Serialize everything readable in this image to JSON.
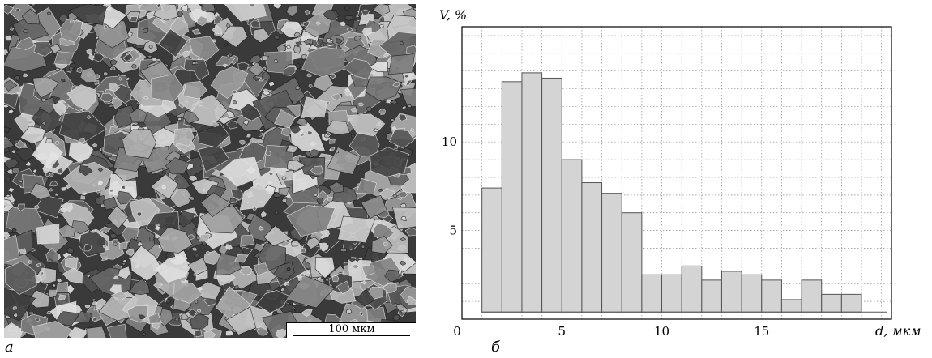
{
  "panel_a": {
    "label": "а",
    "scale_bar": "100 мкм"
  },
  "panel_b": {
    "label": "б"
  },
  "chart_data": {
    "type": "bar",
    "title": "",
    "ylabel": "V, %",
    "xlabel": "d, мкм",
    "x_bin_edges": [
      1,
      2,
      3,
      4,
      5,
      6,
      7,
      8,
      9,
      10,
      11,
      12,
      13,
      14,
      15,
      16,
      17,
      18,
      19,
      20
    ],
    "values": [
      7.4,
      13.4,
      13.9,
      13.6,
      9.0,
      7.7,
      7.1,
      6.0,
      2.5,
      2.5,
      3.0,
      2.2,
      2.7,
      2.5,
      2.2,
      1.1,
      2.2,
      1.4,
      1.4
    ],
    "x_ticks": [
      0,
      5,
      10,
      15
    ],
    "y_ticks": [
      0,
      5,
      10
    ],
    "xlim": [
      0,
      21.5
    ],
    "ylim": [
      0,
      16.5
    ],
    "grid": true,
    "bar_color": "#d4d4d4",
    "edge_color": "#555555"
  }
}
